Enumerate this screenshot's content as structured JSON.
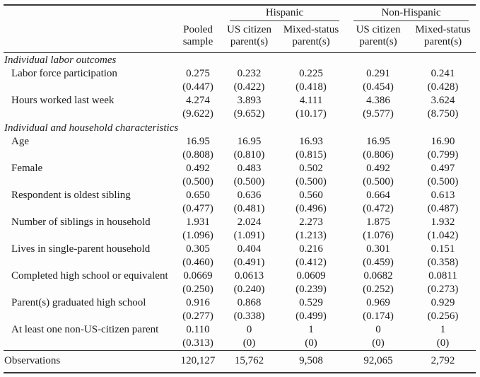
{
  "table": {
    "group_headers": [
      "Hispanic",
      "Non-Hispanic"
    ],
    "column_headers": [
      "Pooled\nsample",
      "US citizen\nparent(s)",
      "Mixed-status\nparent(s)",
      "US citizen\nparent(s)",
      "Mixed-status\nparent(s)"
    ],
    "sections": [
      {
        "title": "Individual labor outcomes",
        "rows": [
          {
            "label": "Labor force participation",
            "means": [
              "0.275",
              "0.232",
              "0.225",
              "0.291",
              "0.241"
            ],
            "sds": [
              "(0.447)",
              "(0.422)",
              "(0.418)",
              "(0.454)",
              "(0.428)"
            ]
          },
          {
            "label": "Hours worked last week",
            "means": [
              "4.274",
              "3.893",
              "4.111",
              "4.386",
              "3.624"
            ],
            "sds": [
              "(9.622)",
              "(9.652)",
              "(10.17)",
              "(9.577)",
              "(8.750)"
            ]
          }
        ]
      },
      {
        "title": "Individual and household characteristics",
        "rows": [
          {
            "label": "Age",
            "means": [
              "16.95",
              "16.95",
              "16.93",
              "16.95",
              "16.90"
            ],
            "sds": [
              "(0.808)",
              "(0.810)",
              "(0.815)",
              "(0.806)",
              "(0.799)"
            ]
          },
          {
            "label": "Female",
            "means": [
              "0.492",
              "0.483",
              "0.502",
              "0.492",
              "0.497"
            ],
            "sds": [
              "(0.500)",
              "(0.500)",
              "(0.500)",
              "(0.500)",
              "(0.500)"
            ]
          },
          {
            "label": "Respondent is oldest sibling",
            "means": [
              "0.650",
              "0.636",
              "0.560",
              "0.664",
              "0.613"
            ],
            "sds": [
              "(0.477)",
              "(0.481)",
              "(0.496)",
              "(0.472)",
              "(0.487)"
            ]
          },
          {
            "label": "Number of siblings in household",
            "means": [
              "1.931",
              "2.024",
              "2.273",
              "1.875",
              "1.932"
            ],
            "sds": [
              "(1.096)",
              "(1.091)",
              "(1.213)",
              "(1.076)",
              "(1.042)"
            ]
          },
          {
            "label": "Lives in single-parent household",
            "means": [
              "0.305",
              "0.404",
              "0.216",
              "0.301",
              "0.151"
            ],
            "sds": [
              "(0.460)",
              "(0.491)",
              "(0.412)",
              "(0.459)",
              "(0.358)"
            ]
          },
          {
            "label": "Completed high school or equivalent",
            "means": [
              "0.0669",
              "0.0613",
              "0.0609",
              "0.0682",
              "0.0811"
            ],
            "sds": [
              "(0.250)",
              "(0.240)",
              "(0.239)",
              "(0.252)",
              "(0.273)"
            ]
          },
          {
            "label": "Parent(s) graduated high school",
            "means": [
              "0.916",
              "0.868",
              "0.529",
              "0.969",
              "0.929"
            ],
            "sds": [
              "(0.277)",
              "(0.338)",
              "(0.499)",
              "(0.174)",
              "(0.256)"
            ]
          },
          {
            "label": "At least one non-US-citizen parent",
            "means": [
              "0.110",
              "0",
              "1",
              "0",
              "1"
            ],
            "sds": [
              "(0.313)",
              "(0)",
              "(0)",
              "(0)",
              "(0)"
            ]
          }
        ]
      }
    ],
    "footer": {
      "label": "Observations",
      "values": [
        "120,127",
        "15,762",
        "9,508",
        "92,065",
        "2,792"
      ]
    }
  }
}
